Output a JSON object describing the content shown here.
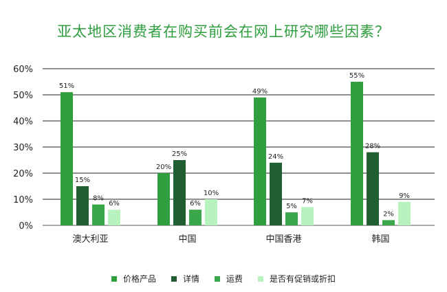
{
  "chart_data": {
    "type": "bar",
    "title": "亚太地区消费者在购买前会在网上研究哪些因素？",
    "categories": [
      "澳大利亚",
      "中国",
      "中国香港",
      "韩国"
    ],
    "series": [
      {
        "name": "价格产品",
        "color": "#2e9e3e",
        "values": [
          51,
          20,
          49,
          55
        ]
      },
      {
        "name": "详情",
        "color": "#1f5f32",
        "values": [
          15,
          25,
          24,
          28
        ]
      },
      {
        "name": "运费",
        "color": "#3aa84a",
        "values": [
          8,
          6,
          5,
          2
        ]
      },
      {
        "name": "是否有促销或折扣",
        "color": "#b8f2bf",
        "values": [
          6,
          10,
          7,
          9
        ]
      }
    ],
    "value_suffix": "%",
    "yticks": [
      "0%",
      "10%",
      "20%",
      "30%",
      "40%",
      "50%",
      "60%"
    ],
    "ylim": [
      0,
      60
    ],
    "grid": true,
    "legend_position": "bottom"
  }
}
